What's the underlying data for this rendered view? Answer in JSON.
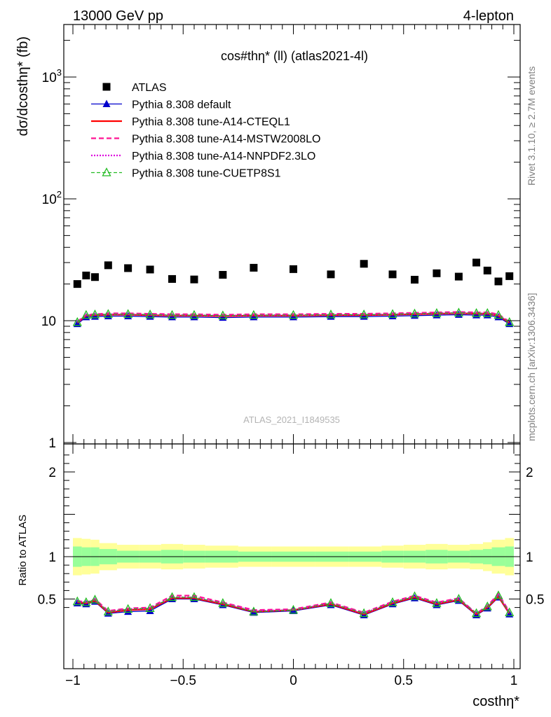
{
  "header": {
    "left": "13000 GeV pp",
    "right": "4-lepton"
  },
  "side_text": {
    "rivet": "Rivet 3.1.10, ≥ 2.7M events",
    "mcplots": "mcplots.cern.ch [arXiv:1306.3436]"
  },
  "chart_data": [
    {
      "type": "scatter",
      "panel": "main",
      "title": "cos#thη* (ll) (atlas2021-4l)",
      "watermark": "ATLAS_2021_I1849535",
      "ylabel": "dσ/dcosthη* (fb)",
      "xlabel": "",
      "yscale": "log",
      "ylim": [
        0.9,
        3000
      ],
      "xlim": [
        -1.05,
        1.05
      ],
      "yticks": [
        "1",
        "10",
        "10^2",
        "10^3"
      ],
      "legend_position": "top-left",
      "x": [
        -0.98,
        -0.94,
        -0.9,
        -0.84,
        -0.75,
        -0.65,
        -0.55,
        -0.45,
        -0.32,
        -0.18,
        0.0,
        0.17,
        0.32,
        0.45,
        0.55,
        0.65,
        0.75,
        0.83,
        0.88,
        0.93,
        0.98
      ],
      "series": [
        {
          "name": "ATLAS",
          "color": "#000000",
          "values": [
            20.0,
            23.5,
            22.8,
            28.5,
            27.0,
            26.3,
            22.0,
            21.8,
            23.8,
            27.2,
            26.5,
            24.0,
            29.3,
            24.0,
            21.7,
            24.5,
            23.0,
            30.0,
            25.8,
            21.0,
            23.2
          ]
        },
        {
          "name": "Pythia 8.308 default",
          "color": "#0000cc",
          "values": [
            9.4,
            10.7,
            10.8,
            10.9,
            10.9,
            10.8,
            10.7,
            10.7,
            10.6,
            10.7,
            10.7,
            10.8,
            10.8,
            10.9,
            11.0,
            11.1,
            11.2,
            11.1,
            11.1,
            10.7,
            9.4
          ]
        },
        {
          "name": "Pythia 8.308 tune-A14-CTEQL1",
          "color": "#ff0000",
          "values": [
            9.6,
            11.0,
            11.1,
            11.2,
            11.2,
            11.1,
            11.0,
            11.0,
            10.9,
            11.0,
            11.0,
            11.1,
            11.1,
            11.2,
            11.3,
            11.4,
            11.5,
            11.4,
            11.4,
            11.0,
            9.6
          ]
        },
        {
          "name": "Pythia 8.308 tune-A14-MSTW2008LO",
          "color": "#ff1493",
          "values": [
            9.8,
            11.2,
            11.3,
            11.5,
            11.5,
            11.4,
            11.3,
            11.3,
            11.2,
            11.3,
            11.3,
            11.4,
            11.4,
            11.5,
            11.6,
            11.7,
            11.8,
            11.7,
            11.7,
            11.3,
            9.8
          ]
        },
        {
          "name": "Pythia 8.308 tune-A14-NNPDF2.3LO",
          "color": "#dd00dd",
          "values": [
            9.7,
            11.1,
            11.2,
            11.3,
            11.3,
            11.2,
            11.1,
            11.1,
            11.0,
            11.1,
            11.1,
            11.2,
            11.2,
            11.3,
            11.4,
            11.5,
            11.6,
            11.5,
            11.5,
            11.1,
            9.7
          ]
        },
        {
          "name": "Pythia 8.308 tune-CUETP8S1",
          "color": "#22bb22",
          "values": [
            9.7,
            11.1,
            11.2,
            11.3,
            11.3,
            11.2,
            11.1,
            11.1,
            11.0,
            11.1,
            11.1,
            11.2,
            11.2,
            11.3,
            11.4,
            11.5,
            11.6,
            11.5,
            11.5,
            11.1,
            9.7
          ]
        }
      ]
    },
    {
      "type": "line",
      "panel": "ratio",
      "ylabel": "Ratio to ATLAS",
      "xlabel": "costhη*",
      "ylim": [
        0.35,
        2.25
      ],
      "xlim": [
        -1.05,
        1.05
      ],
      "yticks": [
        "0.5",
        "1",
        "2"
      ],
      "xticks": [
        "−1",
        "−0.5",
        "0",
        "0.5",
        "1"
      ],
      "band_edges": [
        -1.0,
        -0.96,
        -0.92,
        -0.88,
        -0.8,
        -0.7,
        -0.6,
        -0.5,
        -0.4,
        -0.25,
        -0.1,
        0.1,
        0.25,
        0.4,
        0.5,
        0.6,
        0.7,
        0.8,
        0.86,
        0.9,
        0.96,
        1.0
      ],
      "band_green": [
        [
          0.88,
          1.12
        ],
        [
          0.89,
          1.11
        ],
        [
          0.89,
          1.11
        ],
        [
          0.91,
          1.09
        ],
        [
          0.93,
          1.07
        ],
        [
          0.93,
          1.07
        ],
        [
          0.92,
          1.08
        ],
        [
          0.93,
          1.07
        ],
        [
          0.93,
          1.07
        ],
        [
          0.94,
          1.06
        ],
        [
          0.94,
          1.06
        ],
        [
          0.94,
          1.06
        ],
        [
          0.94,
          1.06
        ],
        [
          0.93,
          1.07
        ],
        [
          0.93,
          1.07
        ],
        [
          0.92,
          1.08
        ],
        [
          0.93,
          1.07
        ],
        [
          0.92,
          1.08
        ],
        [
          0.91,
          1.09
        ],
        [
          0.89,
          1.11
        ],
        [
          0.88,
          1.12
        ]
      ],
      "band_yellow": [
        [
          0.78,
          1.22
        ],
        [
          0.79,
          1.21
        ],
        [
          0.8,
          1.2
        ],
        [
          0.84,
          1.16
        ],
        [
          0.86,
          1.14
        ],
        [
          0.86,
          1.14
        ],
        [
          0.85,
          1.15
        ],
        [
          0.86,
          1.14
        ],
        [
          0.87,
          1.13
        ],
        [
          0.88,
          1.12
        ],
        [
          0.88,
          1.12
        ],
        [
          0.88,
          1.12
        ],
        [
          0.88,
          1.12
        ],
        [
          0.87,
          1.13
        ],
        [
          0.86,
          1.14
        ],
        [
          0.85,
          1.15
        ],
        [
          0.86,
          1.14
        ],
        [
          0.85,
          1.15
        ],
        [
          0.83,
          1.17
        ],
        [
          0.8,
          1.2
        ],
        [
          0.78,
          1.22
        ]
      ],
      "x": [
        -0.98,
        -0.94,
        -0.9,
        -0.84,
        -0.75,
        -0.65,
        -0.55,
        -0.45,
        -0.32,
        -0.18,
        0.0,
        0.17,
        0.32,
        0.45,
        0.55,
        0.65,
        0.75,
        0.83,
        0.88,
        0.93,
        0.98
      ],
      "series": [
        {
          "name": "Pythia 8.308 default",
          "color": "#0000cc",
          "values": [
            0.45,
            0.44,
            0.47,
            0.33,
            0.35,
            0.36,
            0.5,
            0.5,
            0.43,
            0.34,
            0.36,
            0.43,
            0.31,
            0.44,
            0.51,
            0.43,
            0.48,
            0.31,
            0.39,
            0.52,
            0.32
          ]
        },
        {
          "name": "Pythia 8.308 tune-A14-CTEQL1",
          "color": "#ff0000",
          "values": [
            0.46,
            0.45,
            0.48,
            0.34,
            0.37,
            0.38,
            0.51,
            0.51,
            0.44,
            0.35,
            0.37,
            0.44,
            0.32,
            0.45,
            0.52,
            0.44,
            0.49,
            0.32,
            0.4,
            0.53,
            0.33
          ]
        },
        {
          "name": "Pythia 8.308 tune-A14-MSTW2008LO",
          "color": "#ff1493",
          "values": [
            0.48,
            0.46,
            0.5,
            0.36,
            0.39,
            0.4,
            0.54,
            0.54,
            0.46,
            0.37,
            0.38,
            0.46,
            0.34,
            0.47,
            0.54,
            0.46,
            0.51,
            0.33,
            0.42,
            0.56,
            0.35
          ]
        },
        {
          "name": "Pythia 8.308 tune-A14-NNPDF2.3LO",
          "color": "#dd00dd",
          "values": [
            0.47,
            0.46,
            0.49,
            0.35,
            0.38,
            0.39,
            0.52,
            0.52,
            0.45,
            0.36,
            0.37,
            0.45,
            0.33,
            0.46,
            0.53,
            0.45,
            0.5,
            0.33,
            0.41,
            0.55,
            0.34
          ]
        },
        {
          "name": "Pythia 8.308 tune-CUETP8S1",
          "color": "#22bb22",
          "values": [
            0.47,
            0.46,
            0.49,
            0.35,
            0.38,
            0.39,
            0.52,
            0.52,
            0.45,
            0.35,
            0.37,
            0.45,
            0.33,
            0.46,
            0.53,
            0.45,
            0.5,
            0.33,
            0.41,
            0.54,
            0.34
          ]
        }
      ]
    }
  ]
}
